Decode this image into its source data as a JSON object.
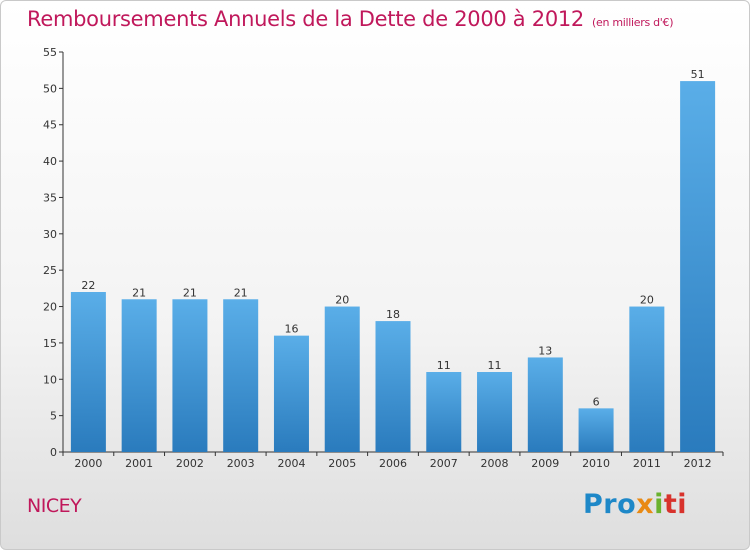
{
  "title": "Remboursements Annuels de la Dette de 2000 à 2012",
  "unit_note": "(en milliers d'€)",
  "town": "NICEY",
  "logo": {
    "p1": "Pro",
    "p2": "x",
    "p3": "i",
    "p4": "ti"
  },
  "colors": {
    "accent": "#c0185b",
    "bar_top": "#5aaee8",
    "bar_bottom": "#2a7bbd"
  },
  "chart_data": {
    "type": "bar",
    "categories": [
      "2000",
      "2001",
      "2002",
      "2003",
      "2004",
      "2005",
      "2006",
      "2007",
      "2008",
      "2009",
      "2010",
      "2011",
      "2012"
    ],
    "values": [
      22,
      21,
      21,
      21,
      16,
      20,
      18,
      11,
      11,
      13,
      6,
      20,
      51
    ],
    "ylim": [
      0,
      55
    ],
    "yticks": [
      0,
      5,
      10,
      15,
      20,
      25,
      30,
      35,
      40,
      45,
      50,
      55
    ],
    "grid": false,
    "legend": "none"
  }
}
